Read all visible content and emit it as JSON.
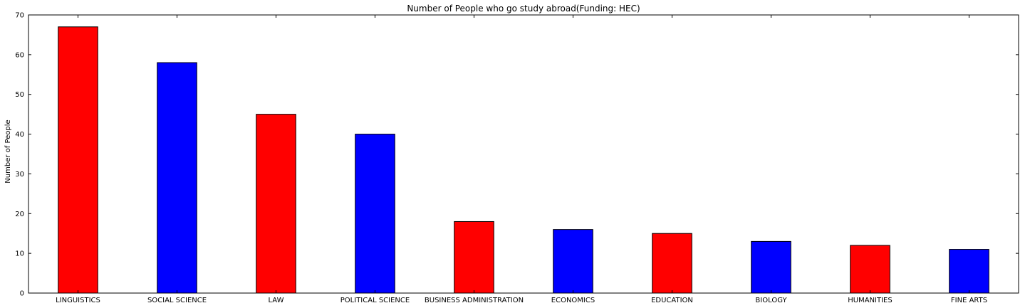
{
  "chart_data": {
    "type": "bar",
    "title": "Number of People who go study abroad(Funding: HEC)",
    "xlabel": "",
    "ylabel": "Number of People",
    "ylim": [
      0,
      70
    ],
    "yticks": [
      0,
      10,
      20,
      30,
      40,
      50,
      60,
      70
    ],
    "grid": false,
    "categories": [
      "LINGUISTICS",
      "SOCIAL SCIENCE",
      "LAW",
      "POLITICAL SCIENCE",
      "BUSINESS ADMINISTRATION",
      "ECONOMICS",
      "EDUCATION",
      "BIOLOGY",
      "HUMANITIES",
      "FINE ARTS"
    ],
    "values": [
      67,
      58,
      45,
      40,
      18,
      16,
      15,
      13,
      12,
      11
    ],
    "bar_colors": [
      "#ff0000",
      "#0000ff",
      "#ff0000",
      "#0000ff",
      "#ff0000",
      "#0000ff",
      "#ff0000",
      "#0000ff",
      "#ff0000",
      "#0000ff"
    ]
  }
}
